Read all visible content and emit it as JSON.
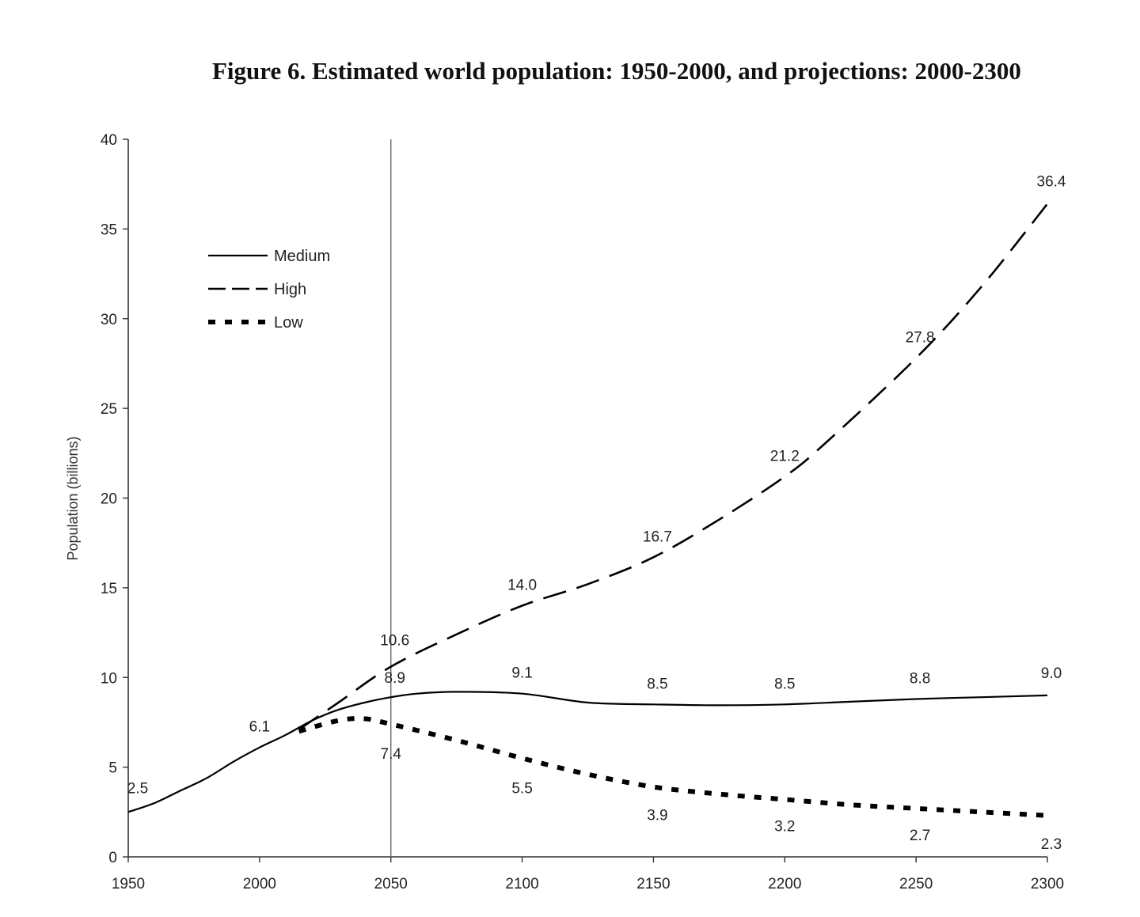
{
  "chart_data": {
    "type": "line",
    "title": "Figure 6. Estimated world population: 1950-2000, and projections: 2000-2300",
    "ylabel": "Population (billions)",
    "xlabel": "",
    "xlim": [
      1950,
      2300
    ],
    "ylim": [
      0,
      40
    ],
    "x_ticks": [
      "1950",
      "2000",
      "2050",
      "2100",
      "2150",
      "2200",
      "2250",
      "2300"
    ],
    "y_ticks": [
      "0",
      "5",
      "10",
      "15",
      "20",
      "25",
      "30",
      "35",
      "40"
    ],
    "reference_line_x": 2050,
    "legend_placement": "top-left",
    "grid": false,
    "series": [
      {
        "name": "Medium",
        "style": "solid",
        "points": [
          [
            1950,
            2.5
          ],
          [
            1960,
            3.0
          ],
          [
            1970,
            3.7
          ],
          [
            1980,
            4.4
          ],
          [
            1990,
            5.3
          ],
          [
            2000,
            6.1
          ],
          [
            2010,
            6.8
          ],
          [
            2020,
            7.6
          ],
          [
            2030,
            8.2
          ],
          [
            2040,
            8.6
          ],
          [
            2050,
            8.9
          ],
          [
            2060,
            9.1
          ],
          [
            2075,
            9.2
          ],
          [
            2100,
            9.1
          ],
          [
            2125,
            8.6
          ],
          [
            2150,
            8.5
          ],
          [
            2175,
            8.45
          ],
          [
            2200,
            8.5
          ],
          [
            2225,
            8.65
          ],
          [
            2250,
            8.8
          ],
          [
            2275,
            8.9
          ],
          [
            2300,
            9.0
          ]
        ]
      },
      {
        "name": "High",
        "style": "dashed",
        "points": [
          [
            2015,
            7.1
          ],
          [
            2030,
            8.6
          ],
          [
            2050,
            10.6
          ],
          [
            2075,
            12.4
          ],
          [
            2100,
            14.0
          ],
          [
            2125,
            15.2
          ],
          [
            2150,
            16.7
          ],
          [
            2175,
            18.8
          ],
          [
            2200,
            21.2
          ],
          [
            2215,
            23.0
          ],
          [
            2250,
            27.8
          ],
          [
            2275,
            31.8
          ],
          [
            2300,
            36.4
          ]
        ]
      },
      {
        "name": "Low",
        "style": "dotted",
        "points": [
          [
            2015,
            7.0
          ],
          [
            2030,
            7.6
          ],
          [
            2040,
            7.7
          ],
          [
            2050,
            7.4
          ],
          [
            2075,
            6.5
          ],
          [
            2100,
            5.5
          ],
          [
            2125,
            4.6
          ],
          [
            2150,
            3.9
          ],
          [
            2175,
            3.5
          ],
          [
            2200,
            3.2
          ],
          [
            2225,
            2.9
          ],
          [
            2250,
            2.7
          ],
          [
            2275,
            2.5
          ],
          [
            2300,
            2.3
          ]
        ]
      }
    ],
    "data_labels": [
      {
        "x": 1950,
        "y": 2.5,
        "text": "2.5"
      },
      {
        "x": 2000,
        "y": 6.1,
        "text": "6.1"
      },
      {
        "x": 2050,
        "y": 10.6,
        "text": "10.6"
      },
      {
        "x": 2050,
        "y": 8.9,
        "text": "8.9"
      },
      {
        "x": 2050,
        "y": 7.4,
        "text": "7.4"
      },
      {
        "x": 2100,
        "y": 14.0,
        "text": "14.0"
      },
      {
        "x": 2100,
        "y": 9.1,
        "text": "9.1"
      },
      {
        "x": 2100,
        "y": 5.5,
        "text": "5.5"
      },
      {
        "x": 2150,
        "y": 16.7,
        "text": "16.7"
      },
      {
        "x": 2150,
        "y": 8.5,
        "text": "8.5"
      },
      {
        "x": 2150,
        "y": 3.9,
        "text": "3.9"
      },
      {
        "x": 2200,
        "y": 21.2,
        "text": "21.2"
      },
      {
        "x": 2200,
        "y": 8.5,
        "text": "8.5"
      },
      {
        "x": 2200,
        "y": 3.2,
        "text": "3.2"
      },
      {
        "x": 2250,
        "y": 27.8,
        "text": "27.8"
      },
      {
        "x": 2250,
        "y": 8.8,
        "text": "8.8"
      },
      {
        "x": 2250,
        "y": 2.7,
        "text": "2.7"
      },
      {
        "x": 2300,
        "y": 36.4,
        "text": "36.4"
      },
      {
        "x": 2300,
        "y": 9.0,
        "text": "9.0"
      },
      {
        "x": 2300,
        "y": 2.3,
        "text": "2.3"
      }
    ]
  }
}
